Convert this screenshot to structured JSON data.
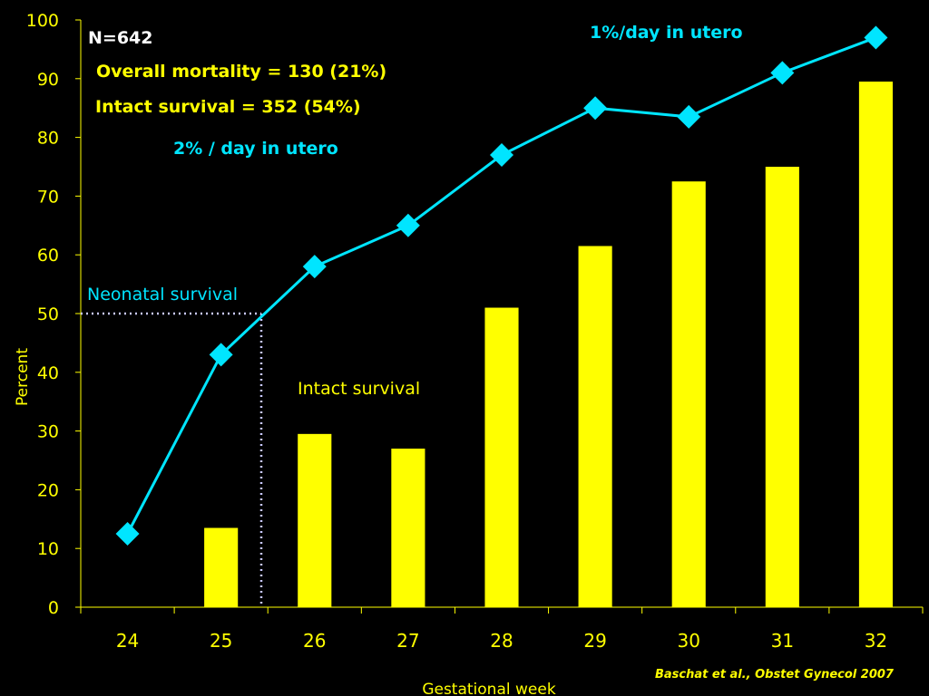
{
  "chart_data": {
    "type": "bar",
    "categories": [
      "24",
      "25",
      "26",
      "27",
      "28",
      "29",
      "30",
      "31",
      "32"
    ],
    "series": [
      {
        "name": "Intact survival",
        "type": "bar",
        "color": "#ffff00",
        "values": [
          0,
          13.5,
          29.5,
          27,
          51,
          61.5,
          72.5,
          75,
          89.5
        ]
      },
      {
        "name": "Neonatal survival",
        "type": "line",
        "color": "#00e5ff",
        "values": [
          12.5,
          43,
          58,
          65,
          77,
          85,
          83.5,
          91,
          97
        ]
      }
    ],
    "xlabel": "Gestational week",
    "ylabel": "Percent",
    "ylim": [
      0,
      100
    ],
    "yticks": [
      "0",
      "10",
      "20",
      "30",
      "40",
      "50",
      "60",
      "70",
      "80",
      "90",
      "100"
    ],
    "reference_line": {
      "y": 50,
      "x": 25.5
    },
    "annotations": {
      "n": "N=642",
      "mortality": "Overall mortality = 130 (21%)",
      "intact": "Intact survival = 352 (54%)",
      "rate_early": "2% / day in utero",
      "rate_late": "1%/day in utero",
      "series_label_line": "Neonatal survival",
      "series_label_bar": "Intact survival"
    },
    "citation": "Baschat et al., Obstet Gynecol 2007",
    "grid": false
  }
}
